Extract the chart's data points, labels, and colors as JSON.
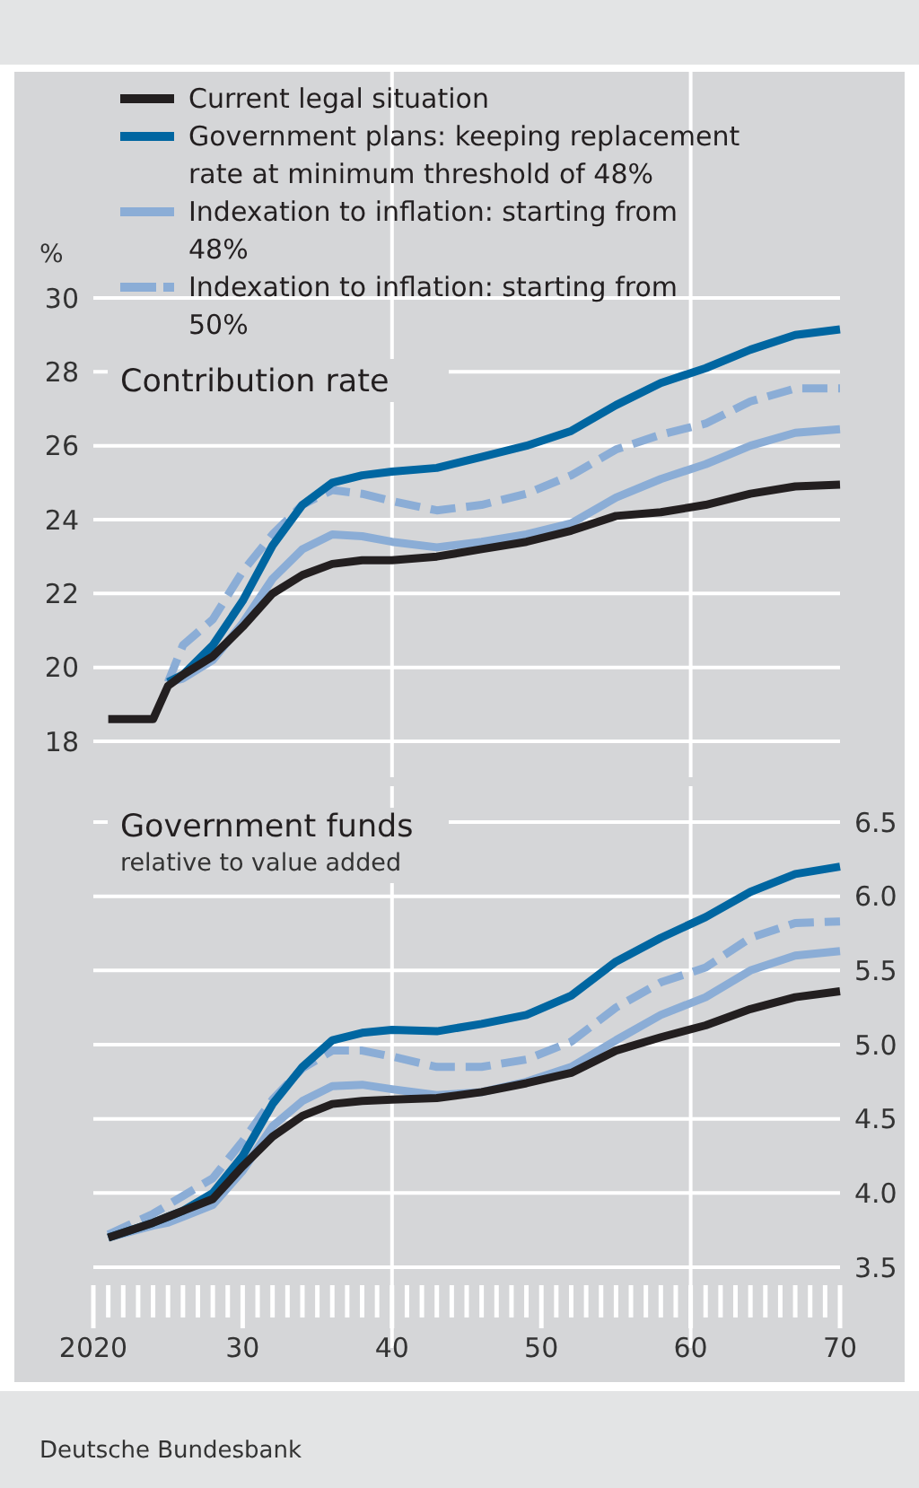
{
  "chart_data": [
    {
      "type": "line",
      "title": "Contribution rate",
      "ylabel": "%",
      "x": [
        2021,
        2024,
        2025,
        2026,
        2028,
        2030,
        2032,
        2034,
        2036,
        2038,
        2040,
        2043,
        2046,
        2049,
        2052,
        2055,
        2058,
        2061,
        2064,
        2067,
        2070
      ],
      "series": [
        {
          "name": "Current legal situation",
          "color": "#231f20",
          "values": [
            18.6,
            18.6,
            19.5,
            19.8,
            20.3,
            21.1,
            22.0,
            22.5,
            22.8,
            22.9,
            22.9,
            23.0,
            23.2,
            23.4,
            23.7,
            24.1,
            24.2,
            24.4,
            24.7,
            24.9,
            24.95
          ]
        },
        {
          "name": "Government plans: keeping replacement rate at minimum threshold of 48%",
          "color": "#0066a1",
          "values": [
            null,
            null,
            19.6,
            19.8,
            20.6,
            21.8,
            23.3,
            24.4,
            25.0,
            25.2,
            25.3,
            25.4,
            25.7,
            26.0,
            26.4,
            27.1,
            27.7,
            28.1,
            28.6,
            29.0,
            29.15
          ]
        },
        {
          "name": "Indexation to inflation: starting from 48%",
          "color": "#8badd6",
          "values": [
            null,
            null,
            19.6,
            19.7,
            20.2,
            21.2,
            22.4,
            23.2,
            23.6,
            23.55,
            23.4,
            23.25,
            23.4,
            23.6,
            23.9,
            24.6,
            25.1,
            25.5,
            26.0,
            26.35,
            26.45
          ]
        },
        {
          "name": "Indexation to inflation: starting from 50%",
          "color": "#8badd6",
          "line_style": "dashed",
          "values": [
            null,
            null,
            19.6,
            20.6,
            21.3,
            22.6,
            23.6,
            24.4,
            24.8,
            24.7,
            24.5,
            24.25,
            24.4,
            24.7,
            25.2,
            25.9,
            26.3,
            26.6,
            27.2,
            27.55,
            27.55
          ]
        }
      ],
      "xlim": [
        2020,
        2070
      ],
      "ylim": [
        18,
        30
      ],
      "yticks": [
        18,
        20,
        22,
        24,
        26,
        28,
        30
      ],
      "grid": "y",
      "legend": "top",
      "tick_labels": "y",
      "line_style": "solid",
      "marker": "none",
      "ref_lines": [
        {
          "axis": "x",
          "value": 2040,
          "color": "#ffffff"
        },
        {
          "axis": "x",
          "value": 2060,
          "color": "#ffffff"
        }
      ]
    },
    {
      "type": "line",
      "title": "Government funds",
      "subtitle": "relative to value added",
      "annotations": [
        "Deutsche Bundesbank"
      ],
      "x": [
        2021,
        2024,
        2025,
        2026,
        2028,
        2030,
        2032,
        2034,
        2036,
        2038,
        2040,
        2043,
        2046,
        2049,
        2052,
        2055,
        2058,
        2061,
        2064,
        2067,
        2070
      ],
      "series": [
        {
          "color": "#231f20",
          "axis": "y2",
          "values": [
            3.7,
            3.8,
            3.84,
            3.88,
            3.96,
            4.18,
            4.38,
            4.52,
            4.6,
            4.62,
            4.63,
            4.64,
            4.68,
            4.74,
            4.81,
            4.96,
            5.05,
            5.13,
            5.24,
            5.32,
            5.36
          ]
        },
        {
          "color": "#0066a1",
          "axis": "y2",
          "values": [
            3.7,
            3.8,
            3.84,
            3.88,
            4.0,
            4.25,
            4.6,
            4.85,
            5.03,
            5.08,
            5.1,
            5.09,
            5.14,
            5.2,
            5.33,
            5.56,
            5.72,
            5.86,
            6.03,
            6.15,
            6.2
          ]
        },
        {
          "color": "#8badd6",
          "axis": "y2",
          "values": [
            3.7,
            3.78,
            3.8,
            3.84,
            3.92,
            4.15,
            4.45,
            4.62,
            4.72,
            4.73,
            4.7,
            4.66,
            4.68,
            4.75,
            4.85,
            5.03,
            5.2,
            5.32,
            5.5,
            5.6,
            5.63
          ]
        },
        {
          "color": "#8badd6",
          "axis": "y2",
          "line_style": "dashed",
          "values": [
            3.72,
            3.86,
            3.92,
            3.98,
            4.1,
            4.35,
            4.63,
            4.84,
            4.96,
            4.96,
            4.92,
            4.85,
            4.85,
            4.9,
            5.02,
            5.25,
            5.42,
            5.52,
            5.72,
            5.82,
            5.83
          ]
        }
      ],
      "xlim": [
        2020,
        2070
      ],
      "xticks": [
        2020,
        {
          "value": 2030,
          "label": "30"
        },
        {
          "value": 2040,
          "label": "40"
        },
        {
          "value": 2050,
          "label": "50"
        },
        {
          "value": 2060,
          "label": "60"
        },
        {
          "value": 2070,
          "label": "70"
        }
      ],
      "y2lim": [
        3.5,
        6.5
      ],
      "y2ticks": [
        3.5,
        {
          "value": 4,
          "label": "4.0"
        },
        4.5,
        {
          "value": 5,
          "label": "5.0"
        },
        5.5,
        {
          "value": 6,
          "label": "6.0"
        },
        6.5
      ],
      "grid": "y",
      "line_style": "solid",
      "marker": "none",
      "ref_lines": [
        {
          "axis": "x",
          "value": 2040,
          "color": "#ffffff"
        },
        {
          "axis": "x",
          "value": 2060,
          "color": "#ffffff"
        }
      ]
    }
  ]
}
